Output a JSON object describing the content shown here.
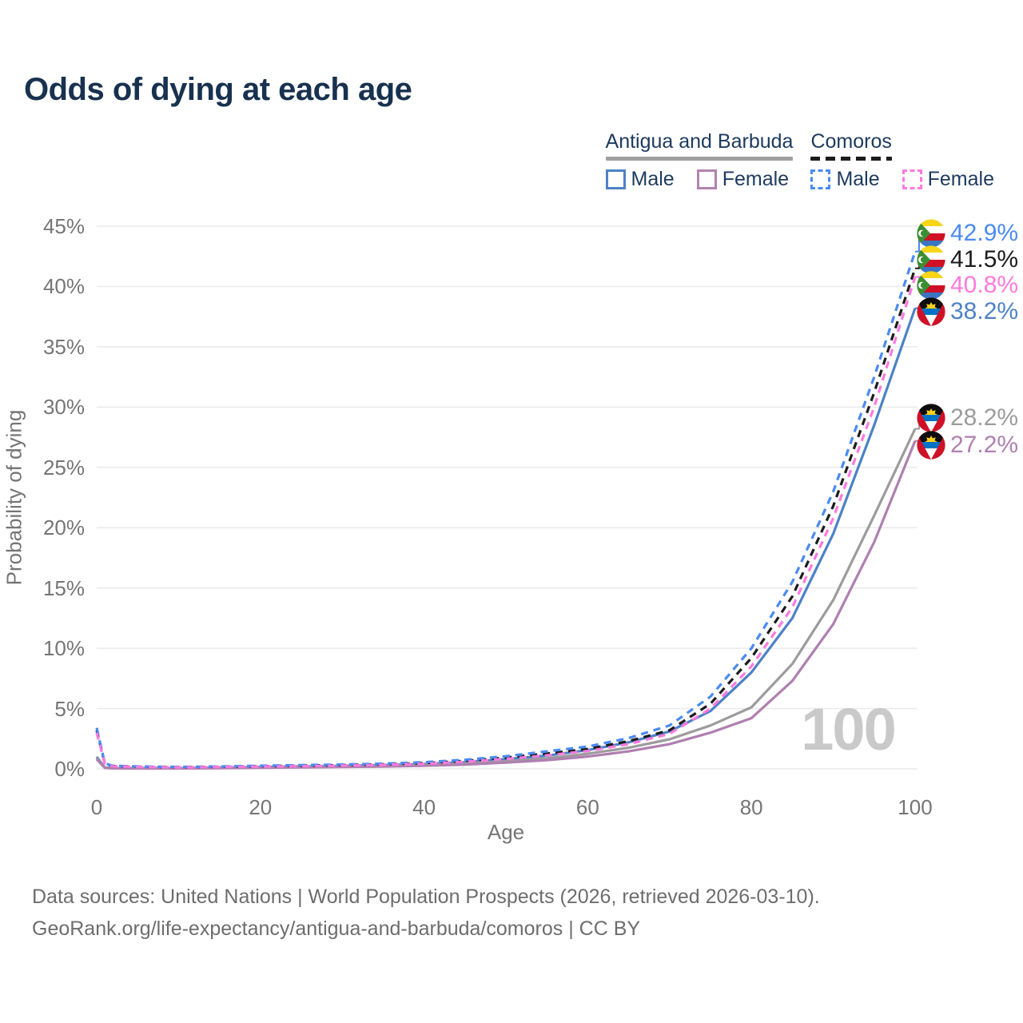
{
  "title": "Odds of dying at each age",
  "legend": {
    "groups": [
      {
        "name": "Antigua and Barbuda",
        "line_style": "solid",
        "underline_color": "#a0a0a0",
        "items": [
          {
            "label": "Male",
            "color": "#4d82c6"
          },
          {
            "label": "Female",
            "color": "#b183ad"
          }
        ]
      },
      {
        "name": "Comoros",
        "line_style": "dashed",
        "underline_color": "#1c1c1c",
        "items": [
          {
            "label": "Male",
            "color": "#4b8af3"
          },
          {
            "label": "Female",
            "color": "#ff79de"
          }
        ]
      }
    ]
  },
  "watermark": "100",
  "footer": {
    "line1": "Data sources: United Nations | World Population Prospects (2026, retrieved 2026-03-10).",
    "line2": "GeoRank.org/life-expectancy/antigua-and-barbuda/comoros | CC BY"
  },
  "chart_data": {
    "type": "line",
    "title": "Odds of dying at each age",
    "xlabel": "Age",
    "ylabel": "Probability of dying",
    "xlim": [
      0,
      100
    ],
    "ylim_pct": [
      0,
      45
    ],
    "grid": true,
    "legend_position": "top-right",
    "x_ticks": [
      0,
      20,
      40,
      60,
      80,
      100
    ],
    "x_tick_labels": [
      "0",
      "20",
      "40",
      "60",
      "80",
      "100"
    ],
    "y_ticks_pct": [
      0,
      5,
      10,
      15,
      20,
      25,
      30,
      35,
      40,
      45
    ],
    "y_tick_labels": [
      "0%",
      "5%",
      "10%",
      "15%",
      "20%",
      "25%",
      "30%",
      "35%",
      "40%",
      "45%"
    ],
    "ages": [
      0,
      1,
      2,
      5,
      10,
      15,
      20,
      25,
      30,
      35,
      40,
      45,
      50,
      55,
      60,
      65,
      70,
      75,
      80,
      85,
      90,
      95,
      100
    ],
    "series": [
      {
        "id": "comoros-male",
        "name": "Comoros — Male",
        "color": "#4b8af3",
        "dashed": true,
        "values_pct": [
          3.4,
          0.45,
          0.25,
          0.2,
          0.16,
          0.2,
          0.26,
          0.31,
          0.36,
          0.43,
          0.55,
          0.75,
          1.05,
          1.45,
          1.85,
          2.55,
          3.6,
          6.0,
          10.0,
          15.5,
          23.0,
          32.5,
          42.9
        ]
      },
      {
        "id": "comoros-both",
        "name": "Comoros — Both sexes",
        "color": "#1c1c1c",
        "dashed": true,
        "values_pct": [
          3.2,
          0.42,
          0.23,
          0.18,
          0.14,
          0.17,
          0.22,
          0.26,
          0.31,
          0.38,
          0.48,
          0.66,
          0.93,
          1.28,
          1.65,
          2.3,
          3.2,
          5.4,
          9.2,
          14.3,
          21.8,
          31.2,
          41.5
        ]
      },
      {
        "id": "comoros-female",
        "name": "Comoros — Female",
        "color": "#ff79de",
        "dashed": true,
        "values_pct": [
          3.0,
          0.4,
          0.21,
          0.16,
          0.12,
          0.15,
          0.19,
          0.22,
          0.27,
          0.33,
          0.42,
          0.58,
          0.82,
          1.12,
          1.48,
          2.05,
          2.9,
          5.0,
          8.5,
          13.4,
          20.8,
          30.0,
          40.8
        ]
      },
      {
        "id": "antigua-male",
        "name": "Antigua and Barbuda — Male",
        "color": "#4d82c6",
        "dashed": false,
        "values_pct": [
          1.0,
          0.1,
          0.06,
          0.05,
          0.05,
          0.1,
          0.15,
          0.2,
          0.25,
          0.31,
          0.4,
          0.55,
          0.8,
          1.1,
          1.55,
          2.2,
          3.1,
          4.8,
          8.0,
          12.5,
          19.5,
          28.5,
          38.2
        ]
      },
      {
        "id": "antigua-both",
        "name": "Antigua and Barbuda — Both sexes",
        "color": "#9c9c9c",
        "dashed": false,
        "values_pct": [
          0.9,
          0.09,
          0.05,
          0.04,
          0.04,
          0.08,
          0.12,
          0.15,
          0.19,
          0.24,
          0.32,
          0.44,
          0.63,
          0.88,
          1.25,
          1.75,
          2.45,
          3.6,
          5.1,
          8.7,
          14.0,
          21.0,
          28.2
        ]
      },
      {
        "id": "antigua-female",
        "name": "Antigua and Barbuda — Female",
        "color": "#b07fb0",
        "dashed": false,
        "values_pct": [
          0.8,
          0.08,
          0.04,
          0.03,
          0.03,
          0.06,
          0.09,
          0.12,
          0.15,
          0.19,
          0.26,
          0.36,
          0.52,
          0.72,
          1.02,
          1.45,
          2.05,
          3.0,
          4.2,
          7.3,
          12.0,
          18.8,
          27.2
        ]
      }
    ],
    "end_labels": [
      {
        "text": "42.9%",
        "color": "#4b8af3",
        "flag": "comoros"
      },
      {
        "text": "41.5%",
        "color": "#1c1c1c",
        "flag": "comoros"
      },
      {
        "text": "40.8%",
        "color": "#ff79de",
        "flag": "comoros"
      },
      {
        "text": "38.2%",
        "color": "#4d82c6",
        "flag": "antigua"
      },
      {
        "text": "28.2%",
        "color": "#9c9c9c",
        "flag": "antigua"
      },
      {
        "text": "27.2%",
        "color": "#b07fb0",
        "flag": "antigua"
      }
    ]
  }
}
